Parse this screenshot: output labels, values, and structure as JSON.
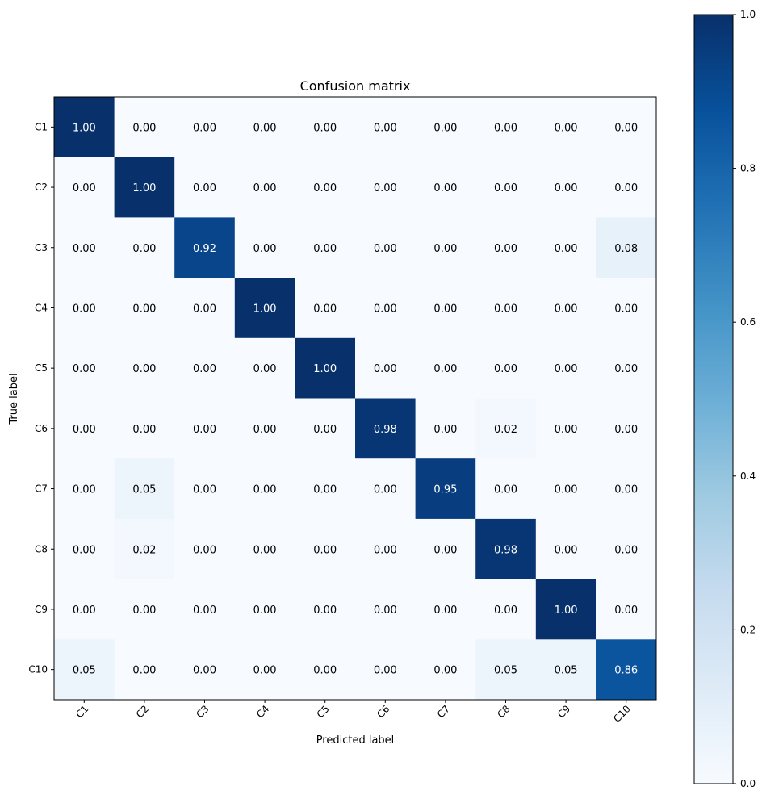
{
  "chart_data": {
    "type": "heatmap",
    "title": "Confusion matrix",
    "xlabel": "Predicted label",
    "ylabel": "True label",
    "x_categories": [
      "C1",
      "C2",
      "C3",
      "C4",
      "C5",
      "C6",
      "C7",
      "C8",
      "C9",
      "C10"
    ],
    "y_categories": [
      "C1",
      "C2",
      "C3",
      "C4",
      "C5",
      "C6",
      "C7",
      "C8",
      "C9",
      "C10"
    ],
    "values": [
      [
        1.0,
        0.0,
        0.0,
        0.0,
        0.0,
        0.0,
        0.0,
        0.0,
        0.0,
        0.0
      ],
      [
        0.0,
        1.0,
        0.0,
        0.0,
        0.0,
        0.0,
        0.0,
        0.0,
        0.0,
        0.0
      ],
      [
        0.0,
        0.0,
        0.92,
        0.0,
        0.0,
        0.0,
        0.0,
        0.0,
        0.0,
        0.08
      ],
      [
        0.0,
        0.0,
        0.0,
        1.0,
        0.0,
        0.0,
        0.0,
        0.0,
        0.0,
        0.0
      ],
      [
        0.0,
        0.0,
        0.0,
        0.0,
        1.0,
        0.0,
        0.0,
        0.0,
        0.0,
        0.0
      ],
      [
        0.0,
        0.0,
        0.0,
        0.0,
        0.0,
        0.98,
        0.0,
        0.02,
        0.0,
        0.0
      ],
      [
        0.0,
        0.05,
        0.0,
        0.0,
        0.0,
        0.0,
        0.95,
        0.0,
        0.0,
        0.0
      ],
      [
        0.0,
        0.02,
        0.0,
        0.0,
        0.0,
        0.0,
        0.0,
        0.98,
        0.0,
        0.0
      ],
      [
        0.0,
        0.0,
        0.0,
        0.0,
        0.0,
        0.0,
        0.0,
        0.0,
        1.0,
        0.0
      ],
      [
        0.05,
        0.0,
        0.0,
        0.0,
        0.0,
        0.0,
        0.0,
        0.05,
        0.05,
        0.86
      ]
    ],
    "colormap": "Blues",
    "color_range": [
      0.0,
      1.0
    ],
    "colorbar_ticks": [
      "0.0",
      "0.2",
      "0.4",
      "0.6",
      "0.8",
      "1.0"
    ],
    "colorbar_position": "right",
    "grid": false,
    "colors": {
      "low": "#f7fbff",
      "high": "#08306b",
      "dark_text": "#000000",
      "light_text": "#ffffff"
    }
  }
}
